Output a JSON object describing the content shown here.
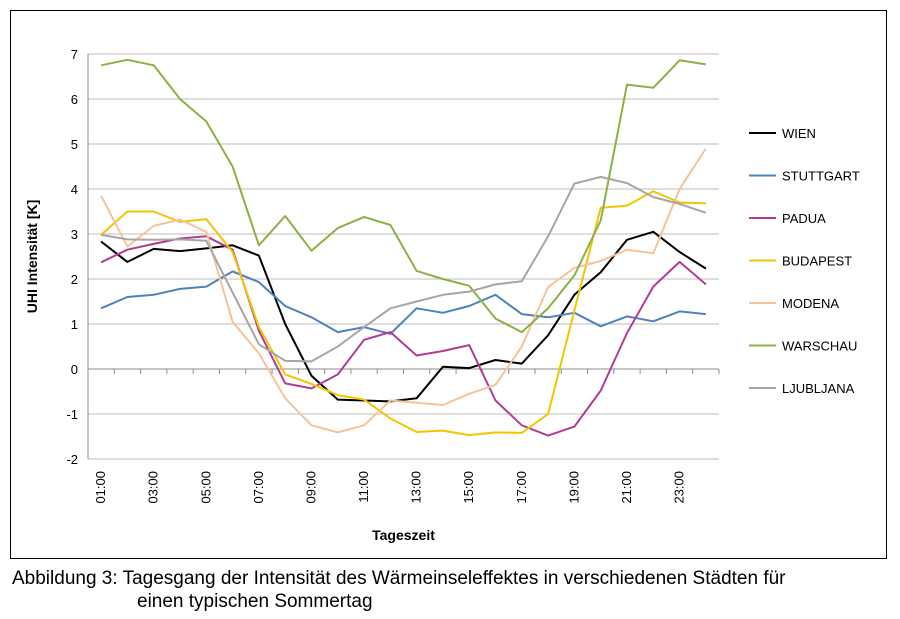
{
  "chart_data": {
    "type": "line",
    "xlabel": "Tageszeit",
    "ylabel": "UHI Intensität [K]",
    "ylim": [
      -2,
      7
    ],
    "yticks": [
      -2,
      -1,
      0,
      1,
      2,
      3,
      4,
      5,
      6,
      7
    ],
    "x": [
      "01:00",
      "02:00",
      "03:00",
      "04:00",
      "05:00",
      "06:00",
      "07:00",
      "08:00",
      "09:00",
      "10:00",
      "11:00",
      "12:00",
      "13:00",
      "14:00",
      "15:00",
      "16:00",
      "17:00",
      "18:00",
      "19:00",
      "20:00",
      "21:00",
      "22:00",
      "23:00",
      "24:00"
    ],
    "x_tick_labels": [
      "01:00",
      "03:00",
      "05:00",
      "07:00",
      "09:00",
      "11:00",
      "13:00",
      "15:00",
      "17:00",
      "19:00",
      "21:00",
      "23:00"
    ],
    "grid": "horizontal",
    "legend_position": "right",
    "series": [
      {
        "name": "WIEN",
        "color": "#000000",
        "values": [
          2.83,
          2.38,
          2.67,
          2.62,
          2.68,
          2.75,
          2.52,
          1.0,
          -0.15,
          -0.68,
          -0.7,
          -0.72,
          -0.65,
          0.05,
          0.02,
          0.2,
          0.12,
          0.75,
          1.65,
          2.15,
          2.87,
          3.05,
          2.6,
          2.23
        ]
      },
      {
        "name": "STUTTGART",
        "color": "#4f81bd",
        "values": [
          1.35,
          1.6,
          1.65,
          1.78,
          1.83,
          2.17,
          1.93,
          1.4,
          1.15,
          0.82,
          0.93,
          0.78,
          1.35,
          1.25,
          1.4,
          1.65,
          1.22,
          1.15,
          1.25,
          0.95,
          1.17,
          1.06,
          1.28,
          1.22
        ]
      },
      {
        "name": "PADUA",
        "color": "#b23b94",
        "values": [
          2.37,
          2.65,
          2.78,
          2.9,
          2.95,
          2.65,
          0.85,
          -0.32,
          -0.43,
          -0.12,
          0.65,
          0.82,
          0.3,
          0.4,
          0.53,
          -0.7,
          -1.25,
          -1.48,
          -1.28,
          -0.48,
          0.8,
          1.83,
          2.38,
          1.88
        ]
      },
      {
        "name": "BUDAPEST",
        "color": "#f2c500",
        "values": [
          2.98,
          3.5,
          3.5,
          3.27,
          3.33,
          2.6,
          0.93,
          -0.12,
          -0.33,
          -0.58,
          -0.68,
          -1.1,
          -1.4,
          -1.37,
          -1.47,
          -1.41,
          -1.42,
          -1.0,
          1.3,
          3.58,
          3.63,
          3.95,
          3.7,
          3.68
        ]
      },
      {
        "name": "MODENA",
        "color": "#f5c39b",
        "values": [
          3.85,
          2.72,
          3.18,
          3.32,
          3.05,
          1.05,
          0.35,
          -0.65,
          -1.25,
          -1.41,
          -1.25,
          -0.7,
          -0.75,
          -0.8,
          -0.55,
          -0.35,
          0.5,
          1.82,
          2.25,
          2.4,
          2.65,
          2.57,
          4.0,
          4.9
        ]
      },
      {
        "name": "WARSCHAU",
        "color": "#8db046",
        "values": [
          6.75,
          6.87,
          6.75,
          6.0,
          5.5,
          4.5,
          2.75,
          3.4,
          2.63,
          3.13,
          3.38,
          3.2,
          2.18,
          2.0,
          1.85,
          1.12,
          0.82,
          1.35,
          2.08,
          3.3,
          6.32,
          6.25,
          6.86,
          6.77
        ]
      },
      {
        "name": "LJUBLJANA",
        "color": "#a6a6a6",
        "values": [
          2.98,
          2.88,
          2.87,
          2.88,
          2.85,
          1.7,
          0.55,
          0.18,
          0.17,
          0.5,
          0.93,
          1.35,
          1.5,
          1.65,
          1.72,
          1.88,
          1.95,
          2.95,
          4.12,
          4.27,
          4.13,
          3.82,
          3.67,
          3.47
        ]
      }
    ]
  },
  "caption": {
    "line1": "Abbildung 3: Tagesgang der Intensität des Wärmeinseleffektes in verschiedenen Städten für",
    "line2": "einen typischen Sommertag"
  }
}
